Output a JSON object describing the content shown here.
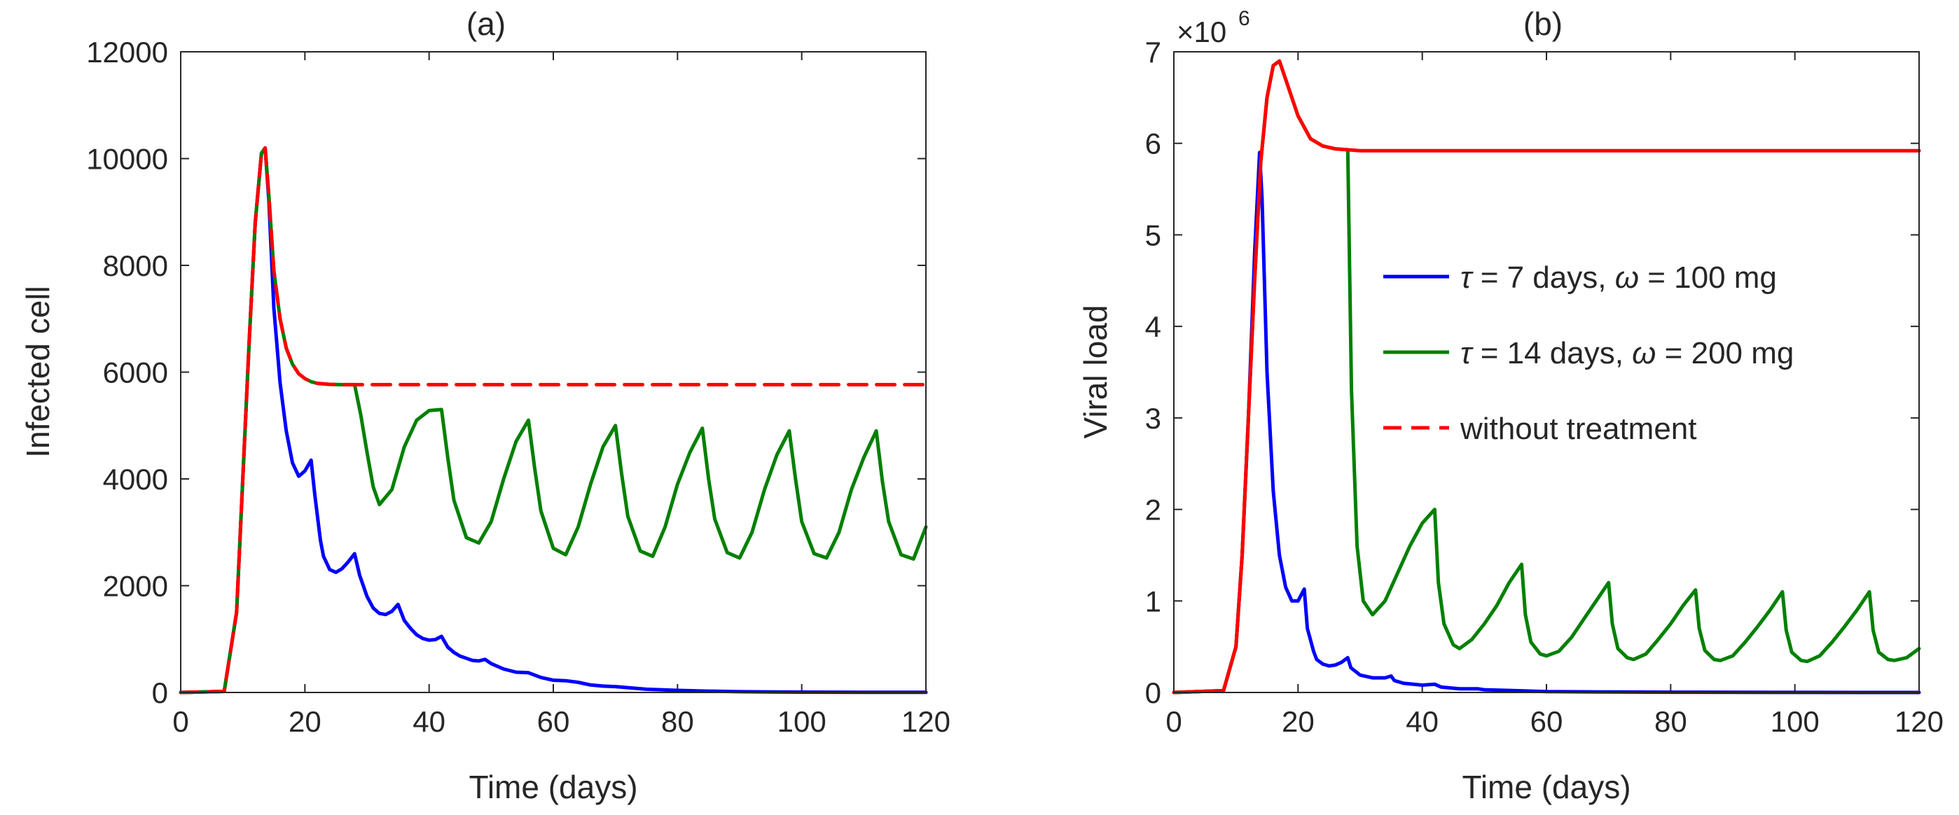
{
  "chart_data": [
    {
      "type": "line",
      "title": "(a)",
      "xlabel": "Time (days)",
      "ylabel": "Infected cell",
      "xlim": [
        0,
        120
      ],
      "ylim": [
        0,
        12000
      ],
      "xticks": [
        "0",
        "20",
        "40",
        "60",
        "80",
        "100",
        "120"
      ],
      "yticks": [
        "0",
        "2000",
        "4000",
        "6000",
        "8000",
        "10000",
        "12000"
      ],
      "series": [
        {
          "color": "#0000ff",
          "dash": "solid",
          "x": [
            0,
            7,
            9,
            11,
            12,
            13,
            13.6,
            14.2,
            15,
            16,
            17,
            18,
            19,
            20,
            21,
            21.6,
            22.5,
            23,
            24,
            25,
            26,
            27,
            28,
            28.8,
            30,
            31,
            32,
            33,
            34,
            35,
            36,
            37,
            38,
            39,
            40,
            41,
            42,
            43,
            44,
            45,
            46,
            47,
            48,
            49,
            50,
            52,
            54,
            56,
            58,
            60,
            62,
            64,
            66,
            68,
            70,
            75,
            80,
            85,
            90,
            95,
            100,
            110,
            120
          ],
          "y": [
            0,
            20,
            1500,
            6500,
            8800,
            10100,
            10200,
            9200,
            7200,
            5800,
            4900,
            4300,
            4050,
            4150,
            4350,
            3700,
            2850,
            2550,
            2300,
            2250,
            2320,
            2450,
            2600,
            2200,
            1800,
            1580,
            1480,
            1460,
            1520,
            1650,
            1350,
            1200,
            1080,
            1010,
            980,
            990,
            1050,
            850,
            750,
            680,
            640,
            600,
            590,
            620,
            540,
            440,
            380,
            370,
            280,
            230,
            220,
            190,
            140,
            120,
            110,
            60,
            40,
            25,
            15,
            10,
            7,
            3,
            2
          ]
        },
        {
          "color": "#008000",
          "dash": "solid",
          "x": [
            0,
            7,
            9,
            11,
            12,
            13,
            13.6,
            14.2,
            15,
            16,
            17,
            18,
            19,
            20,
            21,
            22,
            24,
            26,
            28,
            29,
            30,
            31,
            32,
            34,
            36,
            38,
            40,
            42,
            43,
            44,
            46,
            48,
            50,
            52,
            54,
            56,
            57,
            58,
            60,
            62,
            64,
            66,
            68,
            70,
            71,
            72,
            74,
            76,
            78,
            80,
            82,
            84,
            85,
            86,
            88,
            90,
            92,
            94,
            96,
            98,
            99,
            100,
            102,
            104,
            106,
            108,
            110,
            112,
            113,
            114,
            116,
            118,
            120
          ],
          "y": [
            0,
            20,
            1500,
            6500,
            8800,
            10100,
            10200,
            9300,
            7900,
            7000,
            6450,
            6150,
            5970,
            5880,
            5820,
            5790,
            5770,
            5765,
            5765,
            5200,
            4500,
            3850,
            3520,
            3800,
            4600,
            5100,
            5280,
            5300,
            4400,
            3600,
            2900,
            2800,
            3200,
            4000,
            4700,
            5100,
            4200,
            3400,
            2700,
            2580,
            3100,
            3900,
            4600,
            5000,
            4100,
            3300,
            2650,
            2550,
            3100,
            3900,
            4500,
            4950,
            4000,
            3250,
            2620,
            2520,
            3000,
            3800,
            4450,
            4900,
            4000,
            3200,
            2600,
            2520,
            3000,
            3800,
            4400,
            4900,
            3950,
            3200,
            2580,
            2500,
            3100
          ]
        },
        {
          "color": "#ff0000",
          "dash": "dashed",
          "x": [
            0,
            7,
            9,
            11,
            12,
            13,
            13.6,
            14.2,
            15,
            16,
            17,
            18,
            19,
            20,
            21,
            22,
            24,
            26,
            28,
            40,
            60,
            80,
            100,
            120
          ],
          "y": [
            0,
            20,
            1500,
            6500,
            8800,
            10100,
            10200,
            9300,
            7900,
            7000,
            6450,
            6150,
            5970,
            5880,
            5820,
            5790,
            5770,
            5765,
            5765,
            5765,
            5765,
            5765,
            5765,
            5765
          ]
        }
      ]
    },
    {
      "type": "line",
      "title": "(b)",
      "xlabel": "Time (days)",
      "ylabel": "Viral load",
      "y_exponent_base": "×10",
      "y_exponent": "6",
      "xlim": [
        0,
        120
      ],
      "ylim": [
        0,
        7
      ],
      "xticks": [
        "0",
        "20",
        "40",
        "60",
        "80",
        "100",
        "120"
      ],
      "yticks": [
        "0",
        "1",
        "2",
        "3",
        "4",
        "5",
        "6",
        "7"
      ],
      "series": [
        {
          "color": "#0000ff",
          "dash": "solid",
          "x": [
            0,
            8,
            10,
            11,
            12,
            13,
            13.8,
            14.2,
            15,
            16,
            17,
            18,
            19,
            20,
            21,
            21.5,
            22.5,
            23,
            24,
            25,
            26,
            27,
            28,
            28.5,
            30,
            32,
            34,
            35,
            35.5,
            37,
            40,
            42,
            43,
            46,
            49,
            50,
            55,
            60,
            70,
            80,
            100,
            120
          ],
          "y": [
            0,
            0.02,
            0.5,
            1.5,
            3.0,
            4.8,
            5.9,
            5.4,
            3.5,
            2.2,
            1.5,
            1.15,
            1.0,
            1.0,
            1.13,
            0.7,
            0.45,
            0.36,
            0.31,
            0.29,
            0.3,
            0.33,
            0.38,
            0.27,
            0.19,
            0.16,
            0.16,
            0.18,
            0.13,
            0.1,
            0.08,
            0.09,
            0.06,
            0.04,
            0.04,
            0.03,
            0.02,
            0.01,
            0.005,
            0.003,
            0.001,
            0
          ]
        },
        {
          "color": "#008000",
          "dash": "solid",
          "x": [
            0,
            8,
            10,
            11,
            12,
            13,
            14,
            15,
            16,
            17,
            18,
            20,
            22,
            24,
            26,
            28,
            28.6,
            29.5,
            30.5,
            32,
            34,
            36,
            38,
            40,
            42,
            42.6,
            43.5,
            45,
            46,
            48,
            50,
            52,
            54,
            56,
            56.6,
            57.5,
            59,
            60,
            62,
            64,
            66,
            68,
            70,
            70.6,
            71.5,
            73,
            74,
            76,
            78,
            80,
            82,
            84,
            84.6,
            85.5,
            87,
            88,
            90,
            92,
            94,
            96,
            98,
            98.6,
            99.5,
            101,
            102,
            104,
            106,
            108,
            110,
            112,
            112.6,
            113.5,
            115,
            116,
            118,
            120
          ],
          "y": [
            0,
            0.02,
            0.5,
            1.5,
            3.0,
            4.5,
            5.8,
            6.5,
            6.85,
            6.9,
            6.7,
            6.3,
            6.05,
            5.97,
            5.94,
            5.93,
            3.3,
            1.6,
            1.0,
            0.85,
            1.0,
            1.3,
            1.6,
            1.85,
            2.0,
            1.2,
            0.75,
            0.52,
            0.48,
            0.58,
            0.75,
            0.95,
            1.2,
            1.4,
            0.85,
            0.55,
            0.42,
            0.4,
            0.45,
            0.6,
            0.8,
            1.0,
            1.2,
            0.75,
            0.48,
            0.38,
            0.36,
            0.42,
            0.58,
            0.75,
            0.95,
            1.12,
            0.7,
            0.46,
            0.36,
            0.35,
            0.4,
            0.55,
            0.72,
            0.9,
            1.1,
            0.68,
            0.44,
            0.35,
            0.34,
            0.4,
            0.55,
            0.72,
            0.9,
            1.1,
            0.68,
            0.44,
            0.36,
            0.35,
            0.38,
            0.48
          ]
        },
        {
          "color": "#ff0000",
          "dash": "solid",
          "x": [
            0,
            8,
            10,
            11,
            12,
            13,
            14,
            15,
            16,
            17,
            18,
            20,
            22,
            24,
            26,
            28,
            30,
            40,
            60,
            80,
            100,
            120
          ],
          "y": [
            0,
            0.02,
            0.5,
            1.5,
            3.0,
            4.5,
            5.8,
            6.5,
            6.85,
            6.9,
            6.7,
            6.3,
            6.05,
            5.97,
            5.94,
            5.93,
            5.92,
            5.92,
            5.92,
            5.92,
            5.92,
            5.92
          ]
        }
      ],
      "legend": {
        "placement": "center-right",
        "entries": [
          {
            "color": "#0000ff",
            "dash": "solid",
            "label_parts": [
              {
                "text": "τ",
                "italic": true
              },
              {
                "text": " = 7 days, "
              },
              {
                "text": "ω",
                "italic": true
              },
              {
                "text": " = 100 mg"
              }
            ]
          },
          {
            "color": "#008000",
            "dash": "solid",
            "label_parts": [
              {
                "text": "τ",
                "italic": true
              },
              {
                "text": " = 14 days, "
              },
              {
                "text": "ω",
                "italic": true
              },
              {
                "text": " = 200 mg"
              }
            ]
          },
          {
            "color": "#ff0000",
            "dash": "dashed",
            "label_parts": [
              {
                "text": "without treatment"
              }
            ]
          }
        ]
      }
    }
  ]
}
